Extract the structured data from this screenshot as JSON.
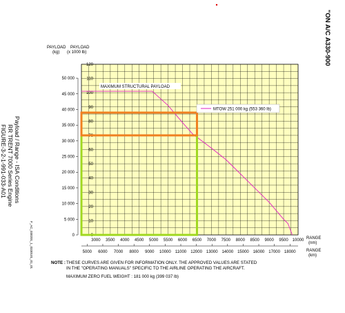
{
  "header": {
    "aircraft": "\"ON A/C A330-900"
  },
  "side_title": {
    "line1": "Payload / Range - ISA Conditions",
    "line2": "RR TRENT 7000 Series Engine",
    "line3": "FIGURE-3-2-1-991-033-A01"
  },
  "doc_ref": "F_AC_030201_1_0330101_01_01",
  "footer": {
    "note_label": "NOTE :",
    "note_line1": "THESE CURVES ARE GIVEN FOR INFORMATION ONLY. THE APPROVED VALUES ARE STATED",
    "note_line2": "IN THE \"OPERATING MANUALS\" SPECIFIC TO THE AIRLINE OPERATING THE AIRCRAFT.",
    "mzfw": "MAXIMUM ZERO FUEL WEIGHT : 181 000 kg (399 037 lb)"
  },
  "colors": {
    "plot_bg": "#ffffc0",
    "grid": "#000000",
    "curve": "#e020c0",
    "orange_box": "#f08020",
    "green_box": "#a0d820"
  },
  "chart_data": {
    "type": "line",
    "labels": {
      "y_left": [
        "PAYLOAD",
        "(kg)"
      ],
      "y_right": [
        "PAYLOAD",
        "(x 1000 lb)"
      ],
      "x_top": [
        "RANGE",
        "(nm)"
      ],
      "x_bottom": [
        "RANGE",
        "(km)"
      ]
    },
    "annotations": {
      "max_payload": "MAXIMUM STRUCTURAL PAYLOAD",
      "legend": "MTOW 251 000 kg (553 360 lb)"
    },
    "x_nm": {
      "min": 2500,
      "max": 10000,
      "ticks": [
        3000,
        3500,
        4000,
        4500,
        5000,
        5500,
        6000,
        6500,
        7000,
        7500,
        8000,
        8500,
        9000,
        9500,
        10000
      ]
    },
    "x_km": {
      "ticks": [
        5000,
        6000,
        7000,
        8000,
        9000,
        10000,
        11000,
        12000,
        13000,
        14000,
        15000,
        16000,
        17000,
        18000
      ]
    },
    "y_lb": {
      "min": 0,
      "max": 120,
      "ticks": [
        0,
        10,
        20,
        30,
        40,
        50,
        60,
        70,
        80,
        90,
        100,
        110,
        120
      ]
    },
    "y_kg": {
      "ticks": [
        0,
        5000,
        10000,
        15000,
        20000,
        25000,
        30000,
        35000,
        40000,
        45000,
        50000
      ]
    },
    "series": [
      {
        "name": "MTOW 251 000 kg (553 360 lb)",
        "points": [
          [
            2500,
            101
          ],
          [
            4950,
            101
          ],
          [
            5500,
            91
          ],
          [
            6000,
            79
          ],
          [
            6350,
            71
          ],
          [
            7000,
            61
          ],
          [
            7500,
            53
          ],
          [
            8000,
            43
          ],
          [
            8500,
            33
          ],
          [
            9000,
            23
          ],
          [
            9500,
            11
          ],
          [
            9650,
            8
          ],
          [
            9800,
            0
          ]
        ]
      }
    ],
    "highlight_orange": {
      "x": [
        2500,
        6500
      ],
      "y_lb": [
        70,
        86
      ]
    },
    "highlight_green": {
      "x": [
        2500,
        6500
      ],
      "y_lb": [
        0,
        70
      ]
    }
  }
}
